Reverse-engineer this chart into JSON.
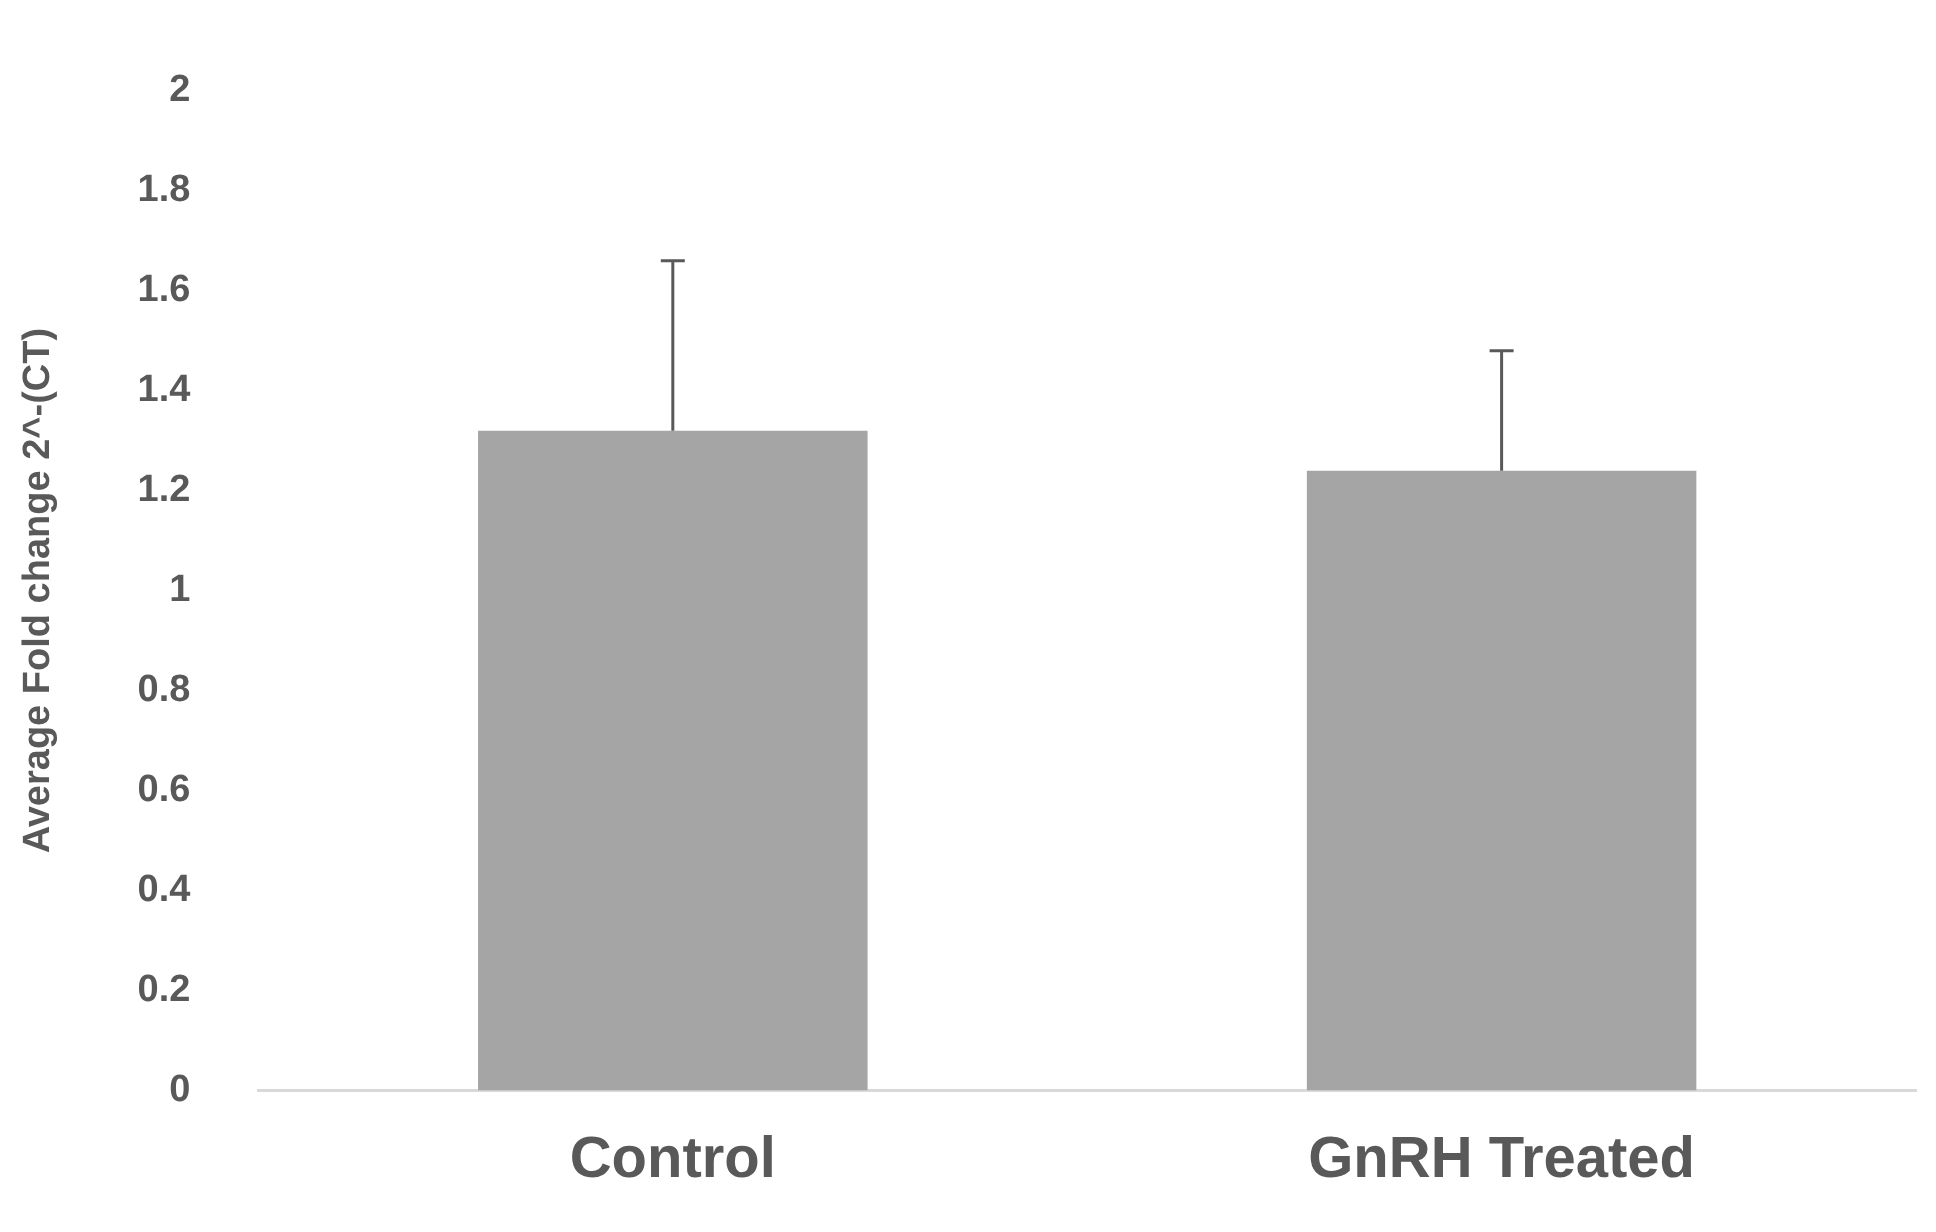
{
  "chart_data": {
    "type": "bar",
    "ylabel": "Average Fold change 2^-(CT)",
    "categories": [
      "Control",
      "GnRH Treated"
    ],
    "values": [
      1.32,
      1.24
    ],
    "errors": [
      [
        1.32,
        1.66
      ],
      [
        1.24,
        1.48
      ]
    ],
    "color": "#a5a5a5",
    "ylim": [
      0,
      2
    ],
    "yticks": [
      0,
      0.2,
      0.4,
      0.6,
      0.8,
      1,
      1.2,
      1.4,
      1.6,
      1.8,
      2
    ],
    "grid": false,
    "legend": false
  }
}
